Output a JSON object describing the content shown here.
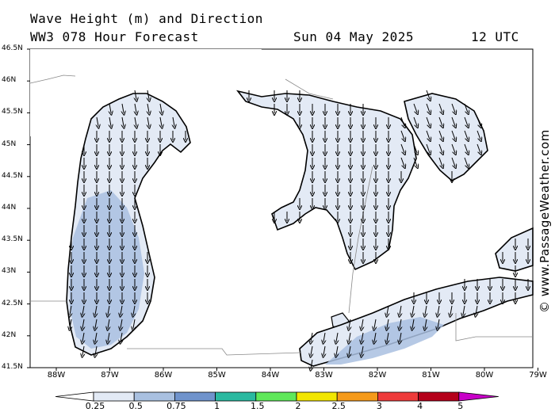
{
  "header": {
    "title_line1": "Wave Height (m) and Direction",
    "title_line2": "WW3 078 Hour Forecast",
    "date": "Sun 04 May 2025",
    "time": "12 UTC"
  },
  "credit": "© www.PassageWeather.com",
  "map": {
    "region": "Great Lakes",
    "lat_labels": [
      "46.5N",
      "46N",
      "45.5N",
      "45N",
      "44.5N",
      "44N",
      "43.5N",
      "43N",
      "42.5N",
      "42N",
      "41.5N"
    ],
    "lon_labels": [
      "88W",
      "87W",
      "86W",
      "85W",
      "84W",
      "83W",
      "82W",
      "81W",
      "80W",
      "79W"
    ],
    "colors": {
      "land": "#ffffff",
      "coast": "#000000",
      "border": "#888888",
      "wave_0_25": "#e3eaf5",
      "wave_0_5": "#a9c0e0",
      "wave_0_75": "#6f93cc",
      "arrow": "#000000"
    },
    "arrow_direction": "mostly south (waves from north)"
  },
  "scale": {
    "labels": [
      "0.25",
      "0.5",
      "0.75",
      "1",
      "1.5",
      "2",
      "2.5",
      "3",
      "4",
      "5"
    ],
    "colors": [
      "#ffffff",
      "#e3eaf5",
      "#a9c0e0",
      "#6f93cc",
      "#2ab9a0",
      "#5fe85a",
      "#f2e600",
      "#f59a1a",
      "#ee3b3b",
      "#b5001a",
      "#c800c8"
    ]
  }
}
